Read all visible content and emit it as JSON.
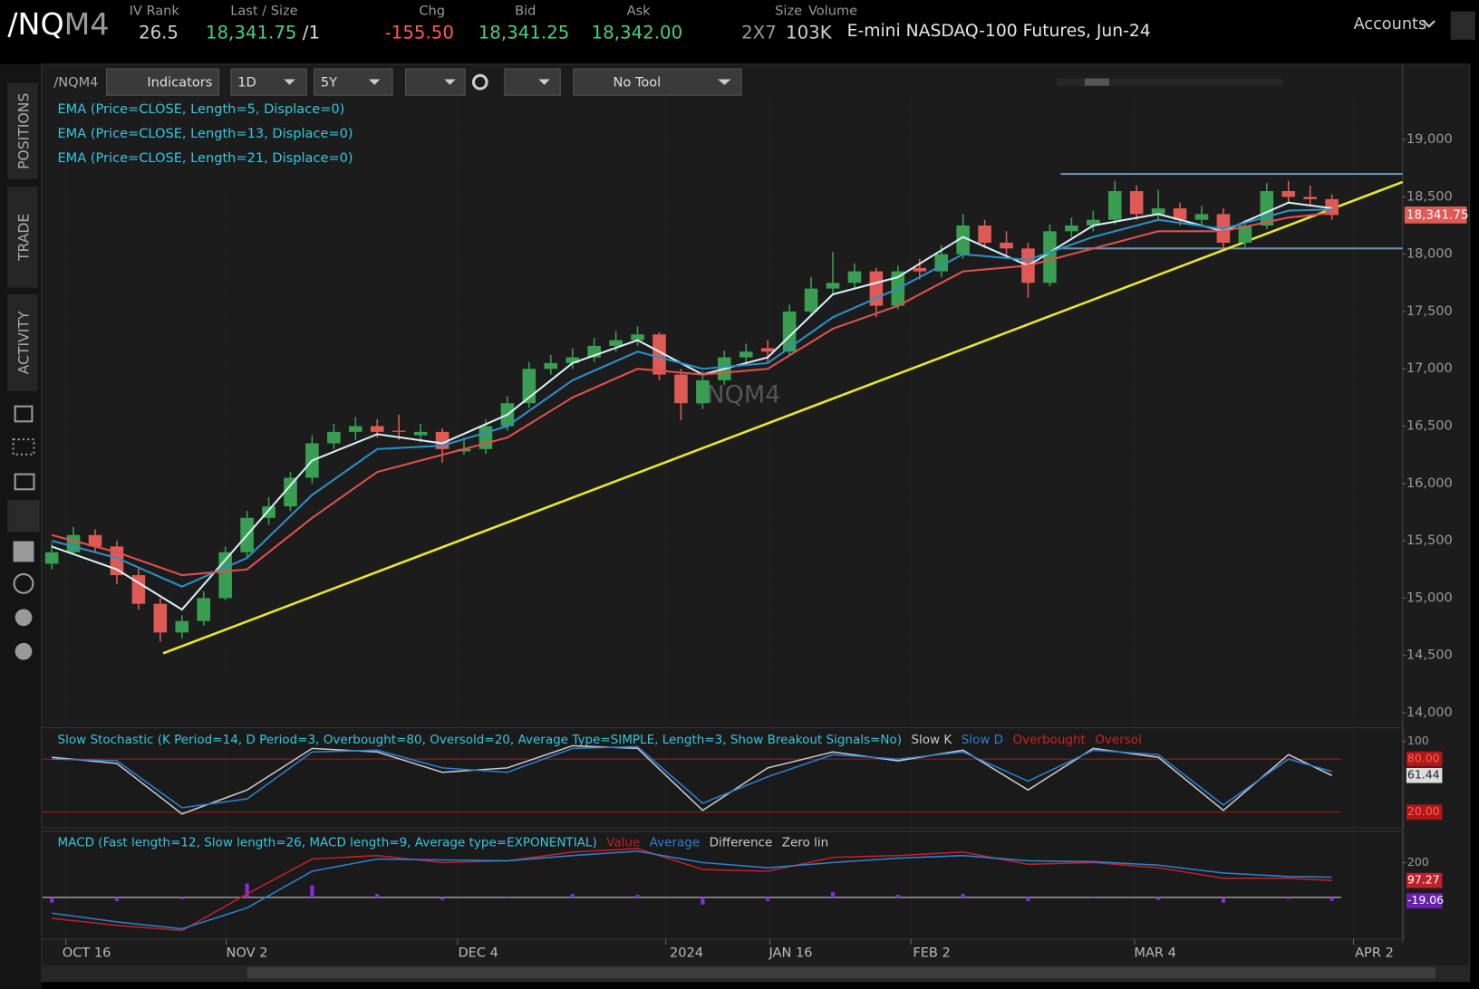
{
  "header": {
    "symbol_root": "/NQ",
    "symbol_month": "M4",
    "fields": [
      {
        "label": "IV Rank",
        "value": "26.5",
        "color": "#cfcfcf"
      },
      {
        "label": "Last / Size",
        "value": "18,341.75",
        "extra": " /1",
        "color": "#4cd07d"
      },
      {
        "label": "Chg",
        "value": "-155.50",
        "color": "#ff5a5a"
      },
      {
        "label": "Bid",
        "value": "18,341.25",
        "color": "#4cd07d"
      },
      {
        "label": "Ask",
        "value": "18,342.00",
        "color": "#4cd07d"
      },
      {
        "label": "Size",
        "value": "2X7",
        "color": "#9a9a9a"
      },
      {
        "label": "Volume",
        "value": "103K",
        "color": "#cfcfcf"
      }
    ],
    "description": "E-mini NASDAQ-100 Futures, Jun-24",
    "accounts": "Accounts"
  },
  "side_tabs": [
    "POSITIONS",
    "TRADE",
    "ACTIVITY"
  ],
  "toolbar": {
    "symbol": "/NQM4",
    "indicators": "Indicators",
    "period": "1D",
    "range": "5Y",
    "tool": "No Tool"
  },
  "chart": {
    "type": "candlestick",
    "watermark": "/NQM4",
    "studies": [
      "EMA (Price=CLOSE, Length=5, Displace=0)",
      "EMA (Price=CLOSE, Length=13, Displace=0)",
      "EMA (Price=CLOSE, Length=21, Displace=0)"
    ],
    "xlim": [
      -0.43,
      62.26
    ],
    "xticks": [
      {
        "value": 0.65,
        "label": "OCT 16"
      },
      {
        "value": 8.04,
        "label": "NOV 2"
      },
      {
        "value": 18.7,
        "label": "DEC 4"
      },
      {
        "value": 28.3,
        "label": "2024"
      },
      {
        "value": 33.1,
        "label": "JAN 16"
      },
      {
        "value": 39.6,
        "label": "FEB 2"
      },
      {
        "value": 49.9,
        "label": "MAR 4"
      },
      {
        "value": 60.0,
        "label": "APR 2"
      }
    ],
    "ylim": [
      13885,
      19641
    ],
    "yticks": [
      {
        "value": 14000,
        "label": "14,000"
      },
      {
        "value": 14500,
        "label": "14,500"
      },
      {
        "value": 15000,
        "label": "15,000"
      },
      {
        "value": 15500,
        "label": "15,500"
      },
      {
        "value": 16000,
        "label": "16,000"
      },
      {
        "value": 16500,
        "label": "16,500"
      },
      {
        "value": 17000,
        "label": "17,000"
      },
      {
        "value": 17500,
        "label": "17,500"
      },
      {
        "value": 18000,
        "label": "18,000"
      },
      {
        "value": 18500,
        "label": "18,500"
      },
      {
        "value": 19000,
        "label": "19,000"
      }
    ],
    "last_price": {
      "value": 18341.75,
      "label": "18,341.75"
    },
    "up_color": "#3a9e52",
    "down_color": "#e05a55",
    "candles": [
      [
        15300,
        15480,
        15250,
        15400
      ],
      [
        15400,
        15620,
        15380,
        15550
      ],
      [
        15550,
        15600,
        15400,
        15450
      ],
      [
        15450,
        15500,
        15120,
        15200
      ],
      [
        15200,
        15260,
        14900,
        14950
      ],
      [
        14950,
        15000,
        14620,
        14700
      ],
      [
        14700,
        14850,
        14650,
        14800
      ],
      [
        14800,
        15060,
        14760,
        15000
      ],
      [
        15000,
        15450,
        14980,
        15400
      ],
      [
        15400,
        15760,
        15350,
        15700
      ],
      [
        15700,
        15880,
        15640,
        15800
      ],
      [
        15800,
        16100,
        15760,
        16050
      ],
      [
        16050,
        16420,
        16000,
        16350
      ],
      [
        16350,
        16520,
        16300,
        16450
      ],
      [
        16450,
        16580,
        16380,
        16500
      ],
      [
        16500,
        16560,
        16400,
        16450
      ],
      [
        16460,
        16600,
        16380,
        16450
      ],
      [
        16420,
        16520,
        16360,
        16450
      ],
      [
        16450,
        16480,
        16180,
        16300
      ],
      [
        16280,
        16400,
        16250,
        16300
      ],
      [
        16300,
        16560,
        16260,
        16500
      ],
      [
        16500,
        16760,
        16460,
        16700
      ],
      [
        16700,
        17060,
        16660,
        17000
      ],
      [
        17000,
        17120,
        16950,
        17050
      ],
      [
        17050,
        17180,
        17000,
        17100
      ],
      [
        17100,
        17270,
        17060,
        17200
      ],
      [
        17200,
        17330,
        17150,
        17250
      ],
      [
        17250,
        17370,
        17200,
        17300
      ],
      [
        17300,
        17320,
        16900,
        16950
      ],
      [
        16950,
        17000,
        16550,
        16700
      ],
      [
        16700,
        16980,
        16650,
        16900
      ],
      [
        16900,
        17160,
        16860,
        17100
      ],
      [
        17100,
        17220,
        17050,
        17150
      ],
      [
        17180,
        17250,
        17060,
        17150
      ],
      [
        17150,
        17560,
        17120,
        17500
      ],
      [
        17500,
        17800,
        17460,
        17700
      ],
      [
        17700,
        18020,
        17650,
        17750
      ],
      [
        17750,
        17920,
        17700,
        17850
      ],
      [
        17850,
        17880,
        17450,
        17550
      ],
      [
        17550,
        17900,
        17520,
        17850
      ],
      [
        17880,
        17960,
        17780,
        17850
      ],
      [
        17850,
        18080,
        17800,
        18000
      ],
      [
        18000,
        18350,
        17960,
        18250
      ],
      [
        18250,
        18300,
        18050,
        18100
      ],
      [
        18100,
        18200,
        17980,
        18050
      ],
      [
        18050,
        18100,
        17620,
        17750
      ],
      [
        17750,
        18260,
        17720,
        18200
      ],
      [
        18200,
        18320,
        18150,
        18250
      ],
      [
        18250,
        18380,
        18200,
        18300
      ],
      [
        18300,
        18640,
        18260,
        18550
      ],
      [
        18550,
        18600,
        18300,
        18350
      ],
      [
        18350,
        18560,
        18300,
        18400
      ],
      [
        18400,
        18450,
        18250,
        18300
      ],
      [
        18300,
        18420,
        18260,
        18350
      ],
      [
        18350,
        18400,
        18050,
        18100
      ],
      [
        18100,
        18300,
        18060,
        18250
      ],
      [
        18250,
        18620,
        18220,
        18550
      ],
      [
        18550,
        18640,
        18450,
        18500
      ],
      [
        18500,
        18600,
        18420,
        18480
      ],
      [
        18480,
        18520,
        18300,
        18341.75
      ]
    ],
    "ema_x": [
      0,
      3,
      6,
      9,
      12,
      15,
      18,
      21,
      24,
      27,
      30,
      33,
      36,
      39,
      42,
      45,
      48,
      51,
      54,
      57,
      59
    ],
    "emas": [
      {
        "color": "#d6eef5",
        "values": [
          15450,
          15250,
          14900,
          15550,
          16200,
          16430,
          16350,
          16600,
          17050,
          17250,
          16950,
          17100,
          17650,
          17800,
          18150,
          17900,
          18250,
          18350,
          18200,
          18450,
          18400
        ]
      },
      {
        "color": "#2b8fc6",
        "values": [
          15500,
          15350,
          15100,
          15350,
          15900,
          16300,
          16330,
          16500,
          16900,
          17150,
          17000,
          17050,
          17450,
          17700,
          18000,
          17950,
          18150,
          18300,
          18220,
          18380,
          18390
        ]
      },
      {
        "color": "#e05050",
        "values": [
          15550,
          15400,
          15200,
          15250,
          15700,
          16100,
          16250,
          16400,
          16750,
          17000,
          16950,
          17000,
          17350,
          17550,
          17850,
          17900,
          18050,
          18200,
          18200,
          18320,
          18360
        ]
      }
    ],
    "trendline": {
      "color": "#e8e82a",
      "x": [
        5.13,
        62.26
      ],
      "values": [
        14518,
        18630
      ]
    },
    "range_lines": {
      "color": "#6a8fb0",
      "x": [
        46.5,
        62.26
      ],
      "values": [
        18700,
        18050
      ]
    },
    "stochastic": {
      "title": "Slow Stochastic (K Period=14, D Period=3, Overbought=80, Oversold=20, Average Type=SIMPLE, Length=3, Show Breakout Signals=No)",
      "legend": [
        {
          "name": "Slow K",
          "color": "#c8c8c8"
        },
        {
          "name": "Slow D",
          "color": "#2b7fd0"
        },
        {
          "name": "Overbought",
          "color": "#d02020"
        },
        {
          "name": "Oversol",
          "color": "#d02020"
        }
      ],
      "ylim": [
        2.4,
        115.3
      ],
      "yticks": [
        100,
        {
          "value": 80,
          "label": "80.00"
        },
        {
          "value": 20,
          "label": "20.00"
        }
      ],
      "last": {
        "value": 61.44,
        "label": "61.44"
      },
      "k": [
        82,
        75,
        18,
        45,
        92,
        88,
        65,
        70,
        95,
        92,
        22,
        70,
        88,
        78,
        90,
        45,
        92,
        82,
        22,
        85,
        61.44
      ],
      "d": [
        80,
        78,
        25,
        35,
        88,
        90,
        70,
        65,
        92,
        94,
        30,
        60,
        85,
        80,
        88,
        55,
        90,
        85,
        28,
        80,
        66
      ]
    },
    "macd": {
      "title": "MACD (Fast length=12, Slow length=26, MACD length=9, Average type=EXPONENTIAL)",
      "legend": [
        {
          "name": "Value",
          "color": "#c0202a"
        },
        {
          "name": "Average",
          "color": "#2b7fd0"
        },
        {
          "name": "Difference",
          "color": "#c8c8c8"
        },
        {
          "name": "Zero lin",
          "color": "#c8c8c8"
        }
      ],
      "ylim": [
        -238,
        378
      ],
      "yticks": [
        200
      ],
      "last_value": {
        "value": 97.27,
        "label": "97.27"
      },
      "last_diff": {
        "value": -19.06,
        "label": "-19.06"
      },
      "value": [
        -120,
        -160,
        -190,
        20,
        220,
        240,
        200,
        210,
        260,
        280,
        160,
        150,
        230,
        240,
        260,
        190,
        200,
        170,
        110,
        110,
        97.27
      ],
      "average": [
        -90,
        -140,
        -180,
        -60,
        150,
        220,
        215,
        210,
        240,
        265,
        200,
        170,
        200,
        225,
        240,
        210,
        205,
        185,
        140,
        120,
        116.33
      ],
      "diff": [
        -30,
        -20,
        -10,
        80,
        70,
        20,
        -15,
        0,
        20,
        15,
        -40,
        -20,
        30,
        15,
        20,
        -20,
        -5,
        -15,
        -30,
        -10,
        -19.06
      ]
    }
  }
}
